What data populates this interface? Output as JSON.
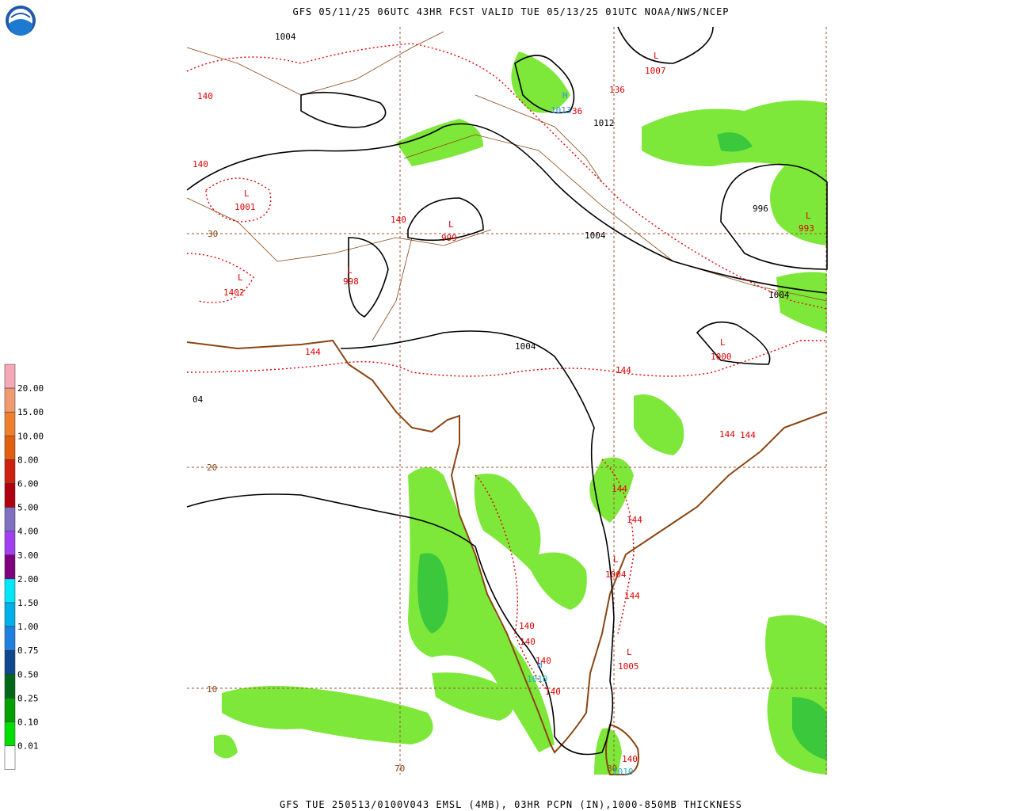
{
  "header": {
    "title": "GFS 05/11/25 06UTC 43HR FCST VALID TUE 05/13/25 01UTC NOAA/NWS/NCEP"
  },
  "footer": {
    "caption": "GFS TUE 250513/0100V043 EMSL (4MB), 03HR PCPN (IN),1000-850MB THICKNESS"
  },
  "legend": {
    "labels": [
      "20.00",
      "15.00",
      "10.00",
      "8.00",
      "6.00",
      "5.00",
      "4.00",
      "3.00",
      "2.00",
      "1.50",
      "1.00",
      "0.75",
      "0.50",
      "0.25",
      "0.10",
      "0.01"
    ]
  },
  "map": {
    "labels": [
      "1004",
      "140",
      "140",
      "L",
      "1001",
      "140",
      "L",
      "999",
      "30",
      "L",
      "998",
      "L",
      "1402",
      "144",
      "1004",
      "L",
      "1007",
      "136",
      "H",
      "1013",
      "36",
      "1012",
      "996",
      "L",
      "993",
      "1004",
      "1004",
      "L",
      "1000",
      "144",
      "144",
      "144",
      "20",
      "144",
      "144",
      "L",
      "1004",
      "144",
      "140",
      "140",
      "L",
      "1005",
      "H",
      "140",
      "1010",
      "140",
      "10",
      "70",
      "80",
      "140",
      "1010",
      "04"
    ]
  }
}
